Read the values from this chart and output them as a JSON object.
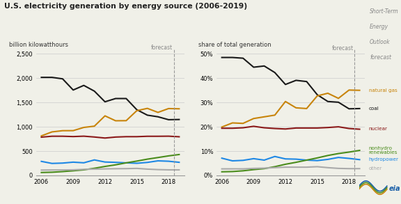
{
  "title": "U.S. electricity generation by energy source (2006-2019)",
  "ylabel_left": "billion kilowatthours",
  "ylabel_right": "share of total generation",
  "forecast_label": "forecast",
  "years": [
    2006,
    2007,
    2008,
    2009,
    2010,
    2011,
    2012,
    2013,
    2014,
    2015,
    2016,
    2017,
    2018,
    2019
  ],
  "abs": {
    "coal": [
      2016,
      2016,
      1986,
      1756,
      1851,
      1733,
      1514,
      1581,
      1581,
      1352,
      1239,
      1206,
      1146,
      1150
    ],
    "natgas": [
      813,
      895,
      920,
      921,
      987,
      1013,
      1225,
      1124,
      1126,
      1331,
      1379,
      1296,
      1375,
      1370
    ],
    "nuclear": [
      787,
      806,
      806,
      799,
      807,
      790,
      769,
      789,
      797,
      797,
      805,
      805,
      807,
      795
    ],
    "nonhydro": [
      60,
      66,
      79,
      96,
      115,
      147,
      185,
      218,
      259,
      295,
      335,
      368,
      402,
      430
    ],
    "hydropower": [
      289,
      247,
      254,
      273,
      260,
      319,
      276,
      269,
      259,
      250,
      268,
      300,
      292,
      270
    ],
    "other": [
      110,
      112,
      112,
      115,
      125,
      130,
      135,
      138,
      140,
      145,
      130,
      120,
      115,
      115
    ]
  },
  "pct": {
    "coal": [
      48.5,
      48.5,
      48.2,
      44.5,
      45.0,
      42.3,
      37.4,
      39.1,
      38.6,
      33.2,
      30.4,
      30.1,
      27.4,
      27.5
    ],
    "natgas": [
      19.9,
      21.6,
      21.4,
      23.4,
      24.1,
      24.8,
      30.4,
      27.8,
      27.5,
      32.7,
      33.8,
      31.7,
      35.1,
      35.0
    ],
    "nuclear": [
      19.4,
      19.4,
      19.6,
      20.2,
      19.6,
      19.3,
      19.1,
      19.5,
      19.5,
      19.5,
      19.7,
      20.0,
      19.3,
      19.0
    ],
    "nonhydro": [
      1.5,
      1.6,
      1.9,
      2.4,
      2.8,
      3.6,
      4.6,
      5.4,
      6.3,
      7.2,
      8.2,
      9.0,
      9.6,
      10.3
    ],
    "hydropower": [
      7.1,
      6.0,
      6.2,
      6.9,
      6.3,
      7.8,
      6.8,
      6.7,
      6.3,
      6.1,
      6.6,
      7.4,
      7.0,
      6.5
    ],
    "other": [
      2.7,
      2.7,
      2.7,
      2.9,
      3.0,
      3.2,
      3.4,
      3.4,
      3.4,
      3.6,
      3.2,
      2.9,
      2.8,
      2.8
    ]
  },
  "colors": {
    "coal": "#1a1a1a",
    "natgas": "#c8840a",
    "nuclear": "#8b1a1a",
    "nonhydro": "#4a8c1c",
    "hydropower": "#1e88e5",
    "other": "#aaaaaa"
  },
  "line_width": 1.5,
  "background_color": "#f0f0e8",
  "grid_color": "#cccccc",
  "sidebar_lines": [
    "Short-Term",
    "Energy",
    "Outlook",
    "forecast"
  ],
  "sidebar_color": "#888888",
  "right_labels": [
    {
      "text": "natural gas",
      "color": "#c8840a",
      "yval": 35.0
    },
    {
      "text": "coal",
      "color": "#1a1a1a",
      "yval": 27.5
    },
    {
      "text": "nuclear",
      "color": "#8b1a1a",
      "yval": 19.3
    },
    {
      "text": "nonhydro\nrenewables",
      "color": "#4a8c1c",
      "yval": 10.3
    },
    {
      "text": "hydropower",
      "color": "#1e88e5",
      "yval": 6.5
    },
    {
      "text": "other",
      "color": "#aaaaaa",
      "yval": 2.8
    }
  ],
  "eia_color": "#1a5fa8"
}
